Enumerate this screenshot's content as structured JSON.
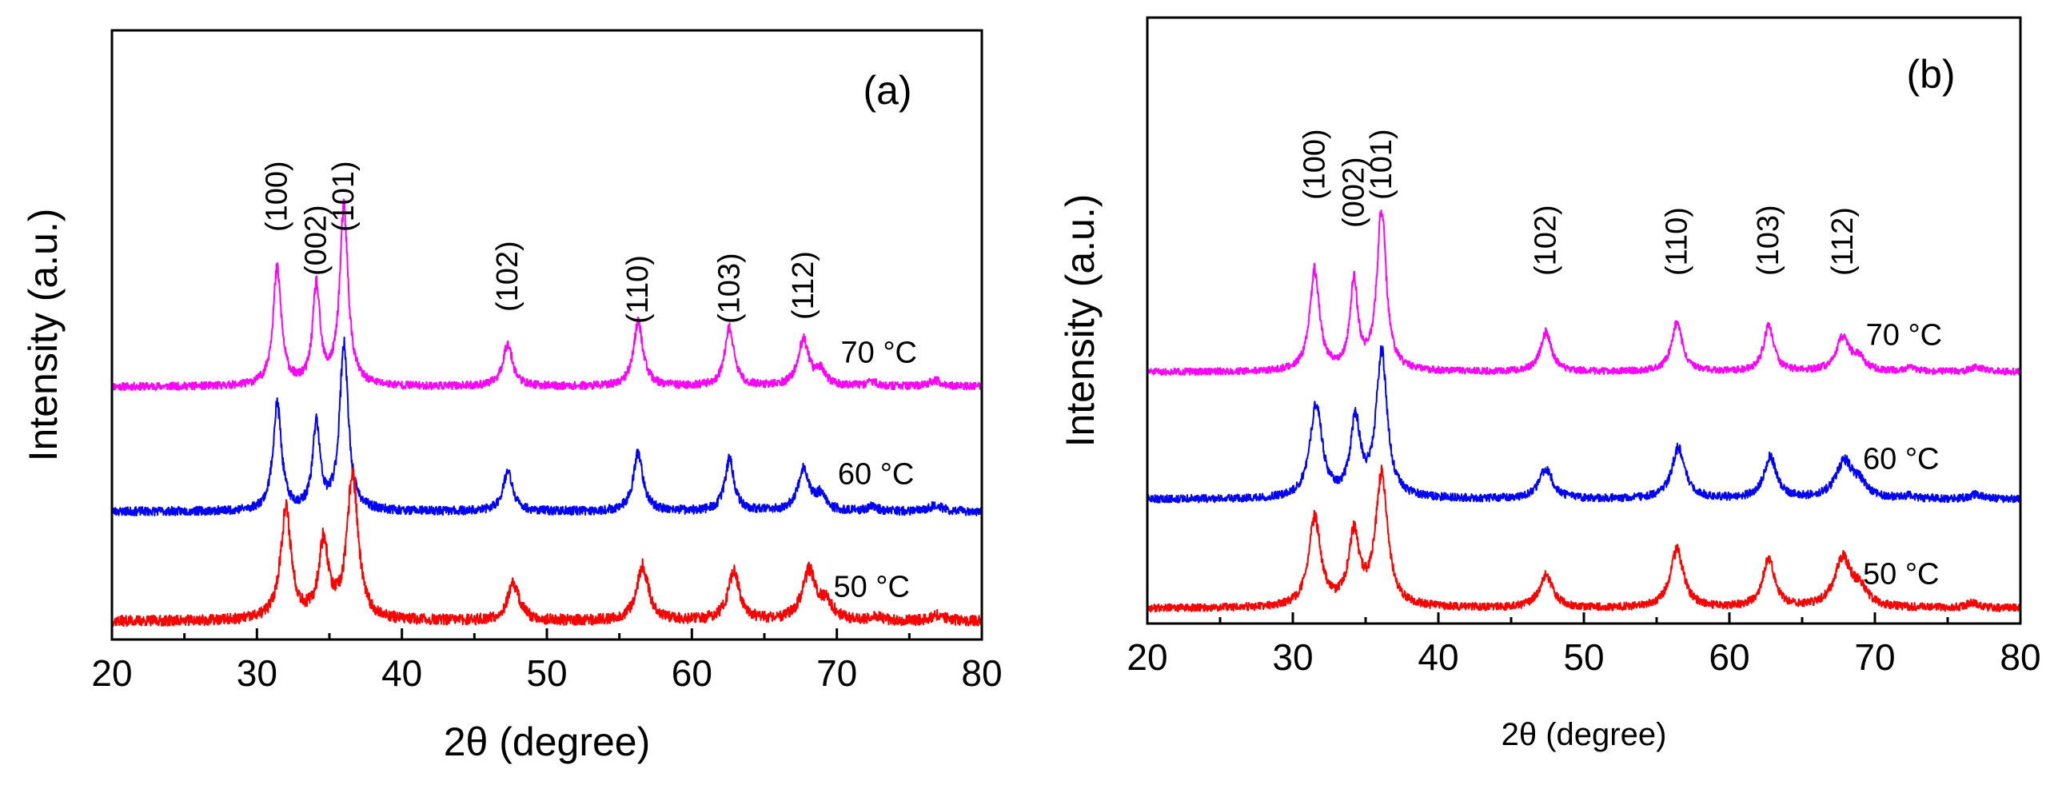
{
  "chart_data": [
    {
      "type": "line",
      "panel_label": "(a)",
      "xlabel": "2θ (degree)",
      "ylabel": "Intensity (a.u.)",
      "xlim": [
        20,
        80
      ],
      "ylim": [
        0,
        10
      ],
      "xticks": [
        20,
        30,
        40,
        50,
        60,
        70,
        80
      ],
      "xtick_labels": [
        "20",
        "30",
        "40",
        "50",
        "60",
        "70",
        "80"
      ],
      "y_ticks_shown": false,
      "grid": false,
      "peak_labels": [
        {
          "text": "(100)",
          "x": 31.4
        },
        {
          "text": "(002)",
          "x": 34.1
        },
        {
          "text": "(101)",
          "x": 36.0
        },
        {
          "text": "(102)",
          "x": 47.3
        },
        {
          "text": "(110)",
          "x": 56.3
        },
        {
          "text": "(103)",
          "x": 62.6
        },
        {
          "text": "(112)",
          "x": 67.7
        }
      ],
      "series": [
        {
          "name": "70 °C",
          "color": "#ff00ff",
          "baseline": 4.15,
          "noise": 0.08,
          "seed": 11,
          "shift": 0.0,
          "peaks": [
            [
              31.4,
              1.9,
              0.35
            ],
            [
              34.1,
              1.6,
              0.3
            ],
            [
              36.0,
              2.9,
              0.35
            ],
            [
              47.3,
              0.7,
              0.4
            ],
            [
              56.3,
              1.05,
              0.4
            ],
            [
              62.6,
              0.95,
              0.38
            ],
            [
              67.7,
              0.75,
              0.45
            ],
            [
              68.9,
              0.25,
              0.4
            ],
            [
              72.4,
              0.08,
              0.4
            ],
            [
              76.8,
              0.1,
              0.5
            ]
          ]
        },
        {
          "name": "60 °C",
          "color": "#0000ff",
          "baseline": 2.1,
          "noise": 0.09,
          "seed": 23,
          "shift": 0.0,
          "peaks": [
            [
              31.4,
              1.75,
              0.35
            ],
            [
              34.1,
              1.4,
              0.3
            ],
            [
              36.0,
              2.75,
              0.35
            ],
            [
              47.3,
              0.65,
              0.4
            ],
            [
              56.3,
              0.95,
              0.4
            ],
            [
              62.6,
              0.85,
              0.38
            ],
            [
              67.7,
              0.7,
              0.45
            ],
            [
              68.9,
              0.25,
              0.4
            ],
            [
              72.4,
              0.08,
              0.4
            ],
            [
              76.8,
              0.1,
              0.5
            ]
          ]
        },
        {
          "name": "50 °C",
          "color": "#ff0000",
          "baseline": 0.3,
          "noise": 0.11,
          "seed": 37,
          "shift": 0.0,
          "peaks": [
            [
              32.0,
              1.8,
              0.45
            ],
            [
              34.6,
              1.25,
              0.4
            ],
            [
              36.6,
              2.4,
              0.45
            ],
            [
              47.7,
              0.6,
              0.5
            ],
            [
              56.6,
              0.9,
              0.5
            ],
            [
              62.9,
              0.8,
              0.48
            ],
            [
              68.1,
              0.8,
              0.6
            ],
            [
              69.3,
              0.25,
              0.5
            ],
            [
              72.8,
              0.06,
              0.4
            ],
            [
              77.0,
              0.1,
              0.5
            ]
          ]
        }
      ],
      "temp_labels": [
        {
          "text": "70 °C",
          "x": 72.9,
          "y": 4.55
        },
        {
          "text": "60 °C",
          "x": 72.7,
          "y": 2.55
        },
        {
          "text": "50 °C",
          "x": 72.4,
          "y": 0.7
        }
      ]
    },
    {
      "type": "line",
      "panel_label": "(b)",
      "xlabel": "2θ (degree)",
      "ylabel": "Intensity (a.u.)",
      "xlim": [
        20,
        80
      ],
      "ylim": [
        0,
        10
      ],
      "xticks": [
        20,
        30,
        40,
        50,
        60,
        70,
        80
      ],
      "xtick_labels": [
        "20",
        "30",
        "40",
        "50",
        "60",
        "70",
        "80"
      ],
      "y_ticks_shown": false,
      "grid": false,
      "peak_labels": [
        {
          "text": "(100)",
          "x": 31.5
        },
        {
          "text": "(002)",
          "x": 34.2
        },
        {
          "text": "(101)",
          "x": 36.1
        },
        {
          "text": "(102)",
          "x": 47.4
        },
        {
          "text": "(110)",
          "x": 56.4
        },
        {
          "text": "(103)",
          "x": 62.7
        },
        {
          "text": "(112)",
          "x": 67.8
        }
      ],
      "series": [
        {
          "name": "70 °C",
          "color": "#ff00ff",
          "baseline": 4.15,
          "noise": 0.07,
          "seed": 51,
          "shift": 0.0,
          "peaks": [
            [
              31.5,
              1.65,
              0.4
            ],
            [
              34.2,
              1.45,
              0.32
            ],
            [
              36.1,
              2.65,
              0.38
            ],
            [
              47.4,
              0.65,
              0.45
            ],
            [
              56.4,
              0.8,
              0.45
            ],
            [
              62.7,
              0.75,
              0.42
            ],
            [
              67.8,
              0.55,
              0.55
            ],
            [
              68.9,
              0.2,
              0.5
            ],
            [
              72.4,
              0.06,
              0.4
            ],
            [
              77.0,
              0.08,
              0.5
            ]
          ]
        },
        {
          "name": "60 °C",
          "color": "#0000ff",
          "baseline": 2.05,
          "noise": 0.08,
          "seed": 63,
          "shift": 0.0,
          "peaks": [
            [
              31.6,
              1.55,
              0.5
            ],
            [
              34.3,
              1.25,
              0.4
            ],
            [
              36.1,
              2.4,
              0.45
            ],
            [
              47.4,
              0.5,
              0.55
            ],
            [
              56.5,
              0.85,
              0.55
            ],
            [
              62.8,
              0.7,
              0.5
            ],
            [
              67.9,
              0.6,
              0.7
            ],
            [
              69.0,
              0.2,
              0.6
            ],
            [
              72.4,
              0.05,
              0.4
            ],
            [
              77.0,
              0.08,
              0.5
            ]
          ]
        },
        {
          "name": "50 °C",
          "color": "#ff0000",
          "baseline": 0.25,
          "noise": 0.08,
          "seed": 77,
          "shift": 0.0,
          "peaks": [
            [
              31.5,
              1.45,
              0.5
            ],
            [
              34.2,
              1.15,
              0.45
            ],
            [
              36.1,
              2.15,
              0.5
            ],
            [
              47.4,
              0.55,
              0.55
            ],
            [
              56.4,
              0.95,
              0.55
            ],
            [
              62.7,
              0.8,
              0.5
            ],
            [
              67.8,
              0.8,
              0.7
            ],
            [
              69.0,
              0.25,
              0.6
            ],
            [
              76.7,
              0.08,
              0.5
            ]
          ]
        }
      ],
      "temp_labels": [
        {
          "text": "70 °C",
          "x": 72.0,
          "y": 4.6
        },
        {
          "text": "60 °C",
          "x": 71.8,
          "y": 2.55
        },
        {
          "text": "50 °C",
          "x": 71.8,
          "y": 0.65
        }
      ]
    }
  ]
}
